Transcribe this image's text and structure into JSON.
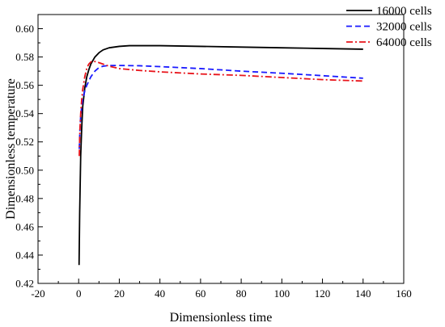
{
  "chart_data": {
    "type": "line",
    "title": "",
    "xlabel": "Dimensionless time",
    "ylabel": "Dimensionless temperature",
    "xlim": [
      -20,
      160
    ],
    "ylim": [
      0.42,
      0.61
    ],
    "xticks": [
      -20,
      0,
      20,
      40,
      60,
      80,
      100,
      120,
      140,
      160
    ],
    "yticks": [
      0.42,
      0.44,
      0.46,
      0.48,
      0.5,
      0.52,
      0.54,
      0.56,
      0.58,
      0.6
    ],
    "grid": false,
    "legend_position": "top-right",
    "series": [
      {
        "name": "16000 cells",
        "color": "#000000",
        "style": "solid",
        "x": [
          0.2,
          0.5,
          1,
          1.5,
          2,
          3,
          4,
          5,
          6,
          8,
          10,
          12,
          15,
          20,
          25,
          30,
          40,
          60,
          80,
          100,
          120,
          140
        ],
        "y": [
          0.433,
          0.47,
          0.51,
          0.53,
          0.545,
          0.558,
          0.566,
          0.571,
          0.575,
          0.58,
          0.583,
          0.585,
          0.5865,
          0.5875,
          0.588,
          0.588,
          0.588,
          0.5875,
          0.587,
          0.5865,
          0.586,
          0.5855
        ]
      },
      {
        "name": "32000 cells",
        "color": "#1a1aff",
        "style": "dashed",
        "x": [
          0.3,
          0.6,
          1,
          1.5,
          2,
          3,
          4,
          5,
          6,
          8,
          10,
          12,
          15,
          20,
          30,
          40,
          60,
          80,
          100,
          120,
          140
        ],
        "y": [
          0.515,
          0.528,
          0.538,
          0.545,
          0.55,
          0.556,
          0.56,
          0.563,
          0.566,
          0.57,
          0.5725,
          0.5735,
          0.574,
          0.574,
          0.5738,
          0.5732,
          0.5718,
          0.57,
          0.5685,
          0.5668,
          0.565
        ]
      },
      {
        "name": "64000 cells",
        "color": "#e8141b",
        "style": "dashdot",
        "x": [
          0.3,
          0.6,
          1,
          1.5,
          2,
          3,
          4,
          5,
          6,
          7,
          8,
          10,
          12,
          15,
          20,
          30,
          40,
          60,
          80,
          100,
          120,
          140
        ],
        "y": [
          0.51,
          0.528,
          0.54,
          0.55,
          0.557,
          0.566,
          0.572,
          0.575,
          0.5765,
          0.577,
          0.5768,
          0.576,
          0.575,
          0.5735,
          0.5718,
          0.5705,
          0.5695,
          0.568,
          0.567,
          0.5655,
          0.564,
          0.563
        ]
      }
    ]
  }
}
